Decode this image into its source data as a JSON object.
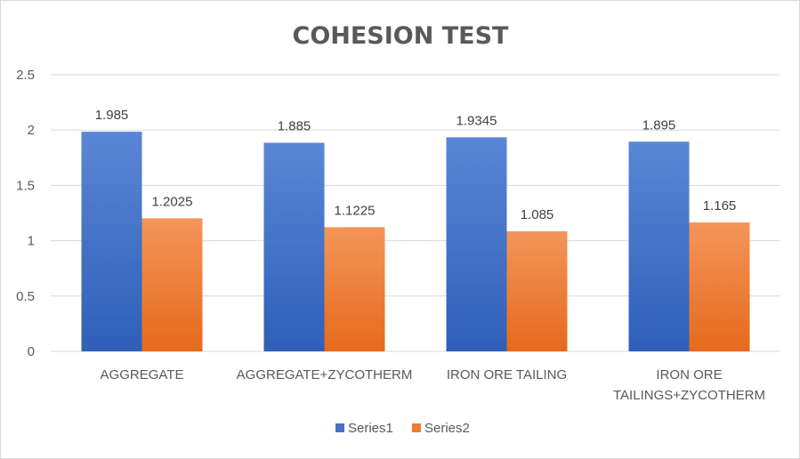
{
  "chart_data": {
    "type": "bar",
    "title": "COHESION TEST",
    "categories": [
      [
        "AGGREGATE"
      ],
      [
        "AGGREGATE+ZYCOTHERM"
      ],
      [
        "IRON ORE TAILING"
      ],
      [
        "IRON ORE",
        "TAILINGS+ZYCOTHERM"
      ]
    ],
    "series": [
      {
        "name": "Series1",
        "values": [
          1.985,
          1.885,
          1.9345,
          1.895
        ],
        "labels": [
          "1.985",
          "1.885",
          "1.9345",
          "1.895"
        ],
        "color": "#4472c4",
        "color_top": "#5a86d6",
        "color_bottom": "#2f5fb8"
      },
      {
        "name": "Series2",
        "values": [
          1.2025,
          1.1225,
          1.085,
          1.165
        ],
        "labels": [
          "1.2025",
          "1.1225",
          "1.085",
          "1.165"
        ],
        "color": "#ed7d31",
        "color_top": "#f4955a",
        "color_bottom": "#e56a1c"
      }
    ],
    "yticks": [
      "0",
      "0.5",
      "1",
      "1.5",
      "2",
      "2.5"
    ],
    "ylim": [
      0,
      2.5
    ],
    "grid": true,
    "legend_position": "bottom"
  }
}
